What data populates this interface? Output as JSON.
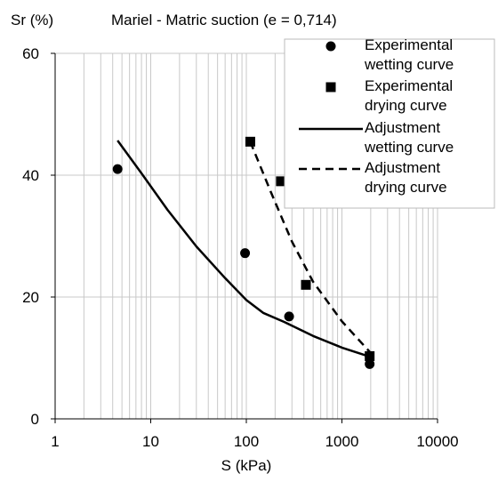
{
  "chart_data": {
    "type": "scatter",
    "title": "Mariel - Matric suction (e = 0,714)",
    "xlabel": "S (kPa)",
    "ylabel": "Sr (%)",
    "x_scale": "log",
    "xlim": [
      1,
      10000
    ],
    "ylim": [
      0,
      60
    ],
    "x_ticks": [
      1,
      10,
      100,
      1000,
      10000
    ],
    "x_tick_labels": [
      "1",
      "10",
      "100",
      "1000",
      "10000"
    ],
    "y_ticks": [
      0,
      20,
      40,
      60
    ],
    "y_tick_labels": [
      "0",
      "20",
      "40",
      "60"
    ],
    "grid": true,
    "legend_position": "top-right",
    "series": [
      {
        "name": "Experimental wetting curve",
        "style": "marker-circle",
        "color": "#000000",
        "x": [
          4.5,
          97,
          280,
          1950
        ],
        "y": [
          41,
          27.2,
          16.8,
          9
        ]
      },
      {
        "name": "Experimental drying curve",
        "style": "marker-square",
        "color": "#000000",
        "x": [
          110,
          230,
          420,
          1950
        ],
        "y": [
          45.5,
          39,
          22,
          10.3
        ]
      },
      {
        "name": "Adjustment wetting curve",
        "style": "line-solid",
        "color": "#000000",
        "x": [
          4.5,
          8,
          15,
          30,
          60,
          100,
          150,
          250,
          500,
          1000,
          1950
        ],
        "y": [
          45.7,
          40.3,
          34.3,
          28.3,
          23.1,
          19.5,
          17.4,
          15.9,
          13.6,
          11.7,
          10.2
        ]
      },
      {
        "name": "Adjustment drying curve",
        "style": "line-dashed",
        "color": "#000000",
        "x": [
          110,
          180,
          300,
          500,
          1000,
          1950
        ],
        "y": [
          45.5,
          37.3,
          29.1,
          22.5,
          16,
          11
        ]
      }
    ]
  }
}
